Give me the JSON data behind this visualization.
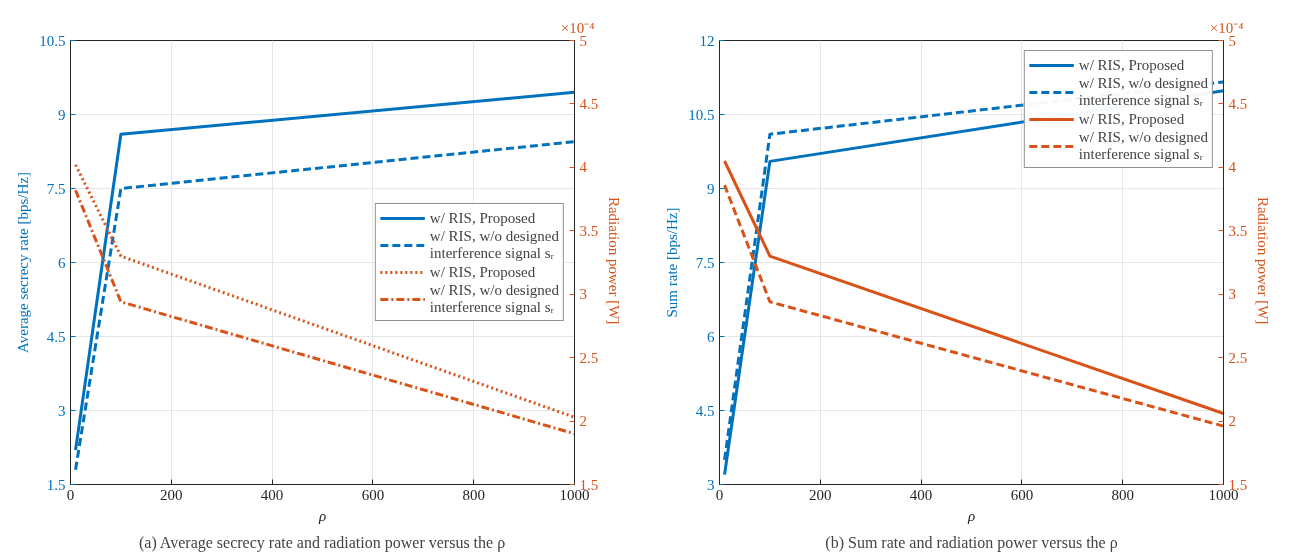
{
  "chart_data": [
    {
      "type": "line",
      "xlabel": "ρ",
      "ylabel": "Average secrecy rate [bps/Hz]",
      "y2label": "Radiation power  [W]",
      "x": [
        10,
        100,
        1000
      ],
      "xlim": [
        0,
        1000
      ],
      "xticks": [
        0,
        200,
        400,
        600,
        800,
        1000
      ],
      "ylim": [
        1.5,
        10.5
      ],
      "yticks": [
        1.5,
        3,
        4.5,
        6,
        7.5,
        9,
        10.5
      ],
      "y2lim": [
        1.5,
        5
      ],
      "y2ticks": [
        1.5,
        2,
        2.5,
        3,
        3.5,
        4,
        4.5,
        5
      ],
      "grid": true,
      "legend": "right",
      "annotations": [
        "×10⁻⁴",
        "(a) Average secrecy rate and radiation power versus the ρ"
      ],
      "series": [
        {
          "name": "w/ RIS, Proposed",
          "color": "#0072bd",
          "line_style": "solid",
          "values": [
            2.2,
            8.6,
            9.45
          ]
        },
        {
          "name": "w/ RIS, w/o designed\ninterference signal sᵣ",
          "color": "#0072bd",
          "line_style": "dashed",
          "values": [
            1.8,
            7.5,
            8.45
          ]
        },
        {
          "name": "w/ RIS, Proposed",
          "color": "#d95319",
          "line_style": "dotted",
          "axis": "y2",
          "values": [
            4.02,
            3.3,
            2.03
          ]
        },
        {
          "name": "w/ RIS, w/o designed\ninterference signal sᵣ",
          "color": "#d95319",
          "line_style": "dashdot",
          "axis": "y2",
          "values": [
            3.82,
            2.94,
            1.9
          ]
        }
      ]
    },
    {
      "type": "line",
      "xlabel": "ρ",
      "ylabel": "Sum rate [bps/Hz]",
      "y2label": "Radiation power  [W]",
      "x": [
        10,
        100,
        1000
      ],
      "xlim": [
        0,
        1000
      ],
      "xticks": [
        0,
        200,
        400,
        600,
        800,
        1000
      ],
      "ylim": [
        3,
        12
      ],
      "yticks": [
        3,
        4.5,
        6,
        7.5,
        9,
        10.5,
        12
      ],
      "y2lim": [
        1.5,
        5
      ],
      "y2ticks": [
        1.5,
        2,
        2.5,
        3,
        3.5,
        4,
        4.5,
        5
      ],
      "grid": true,
      "legend": "top right",
      "annotations": [
        "×10⁻⁴",
        "(b) Sum rate and radiation power versus the ρ"
      ],
      "series": [
        {
          "name": "w/ RIS, Proposed",
          "color": "#0072bd",
          "line_style": "solid",
          "values": [
            3.2,
            9.55,
            10.98
          ]
        },
        {
          "name": "w/ RIS, w/o designed\ninterference signal sᵣ",
          "color": "#0072bd",
          "line_style": "dashed",
          "values": [
            3.5,
            10.1,
            11.16
          ]
        },
        {
          "name": "w/ RIS, Proposed",
          "color": "#d95319",
          "line_style": "solid",
          "axis": "y2",
          "values": [
            4.05,
            3.3,
            2.06
          ]
        },
        {
          "name": "w/ RIS, w/o designed\ninterference signal sᵣ",
          "color": "#d95319",
          "line_style": "dashed",
          "axis": "y2",
          "values": [
            3.86,
            2.94,
            1.96
          ]
        }
      ]
    }
  ]
}
